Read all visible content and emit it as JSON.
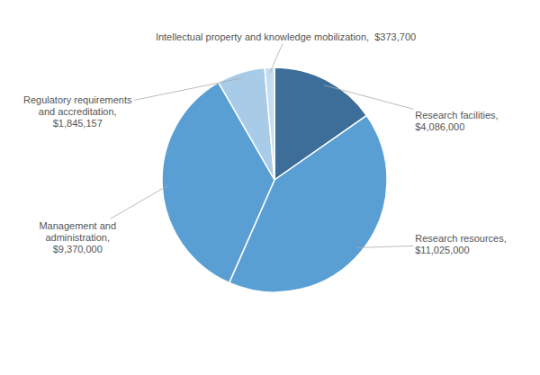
{
  "chart_data": {
    "type": "pie",
    "categories": [
      "Research facilities,\n$4,086,000",
      "Research resources,\n$11,025,000",
      "Management and\nadministration,\n$9,370,000",
      "Regulatory requirements\nand accreditation,\n$1,845,157",
      "Intellectual property and knowledge mobilization,  $373,700"
    ],
    "values": [
      4086000,
      11025000,
      9370000,
      1845157,
      373700
    ],
    "colors": [
      "#3d6e99",
      "#5a9fd4",
      "#5a9fd4",
      "#a8cce8",
      "#c5ddf0"
    ]
  }
}
